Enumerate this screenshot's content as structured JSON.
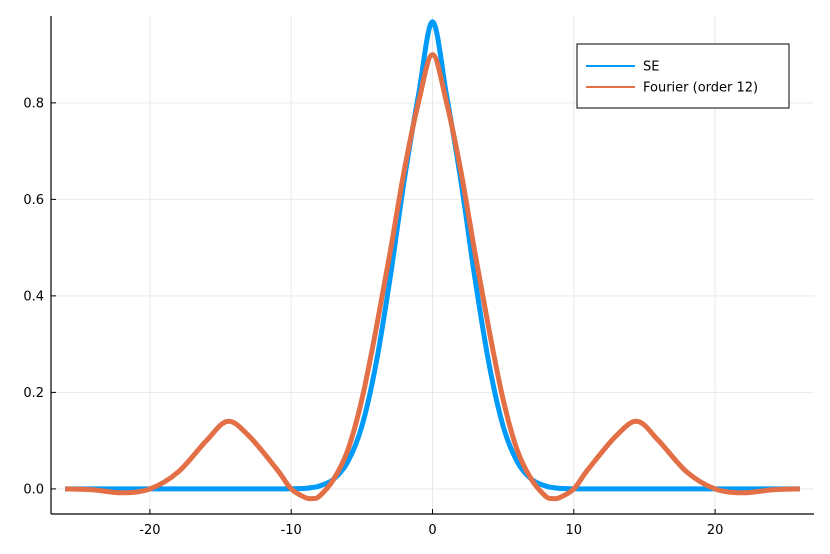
{
  "chart_data": {
    "type": "line",
    "title": "",
    "xlabel": "",
    "ylabel": "",
    "xlim": [
      -27,
      27
    ],
    "ylim": [
      -0.052,
      0.98
    ],
    "x_ticks": [
      -20,
      -10,
      0,
      10,
      20
    ],
    "x_tick_labels": [
      "-20",
      "-10",
      "0",
      "10",
      "20"
    ],
    "y_ticks": [
      0.0,
      0.2,
      0.4,
      0.6,
      0.8
    ],
    "y_tick_labels": [
      "0.0",
      "0.2",
      "0.4",
      "0.6",
      "0.8"
    ],
    "grid": true,
    "legend_position": "top-right",
    "x": [
      -26,
      -24,
      -22,
      -20,
      -18,
      -16,
      -14.5,
      -13,
      -11,
      -10,
      -9,
      -8.5,
      -8,
      -7,
      -6,
      -5,
      -4,
      -3,
      -2,
      -1,
      0,
      1,
      2,
      3,
      4,
      5,
      6,
      7,
      8,
      8.5,
      9,
      10,
      11,
      13,
      14.5,
      16,
      18,
      20,
      22,
      24,
      26
    ],
    "series": [
      {
        "name": "SE",
        "color": "#009af9",
        "values": [
          0,
          0,
          0,
          0,
          0,
          0,
          0,
          0,
          0,
          0.0002,
          0.0012,
          0.003,
          0.006,
          0.02,
          0.056,
          0.13,
          0.259,
          0.437,
          0.64,
          0.815,
          0.968,
          0.815,
          0.64,
          0.437,
          0.259,
          0.13,
          0.056,
          0.02,
          0.006,
          0.003,
          0.0012,
          0.0002,
          0,
          0,
          0,
          0,
          0,
          0,
          0,
          0,
          0
        ]
      },
      {
        "name": "Fourier (order 12)",
        "color": "#e26f46",
        "values": [
          0.0,
          -0.002,
          -0.008,
          0.0,
          0.035,
          0.1,
          0.14,
          0.11,
          0.04,
          0.0,
          -0.018,
          -0.02,
          -0.015,
          0.02,
          0.08,
          0.185,
          0.33,
          0.49,
          0.66,
          0.8,
          0.9,
          0.8,
          0.66,
          0.49,
          0.33,
          0.185,
          0.08,
          0.02,
          -0.015,
          -0.02,
          -0.018,
          0.0,
          0.04,
          0.11,
          0.14,
          0.1,
          0.035,
          0.0,
          -0.008,
          -0.002,
          0.0
        ]
      }
    ]
  }
}
